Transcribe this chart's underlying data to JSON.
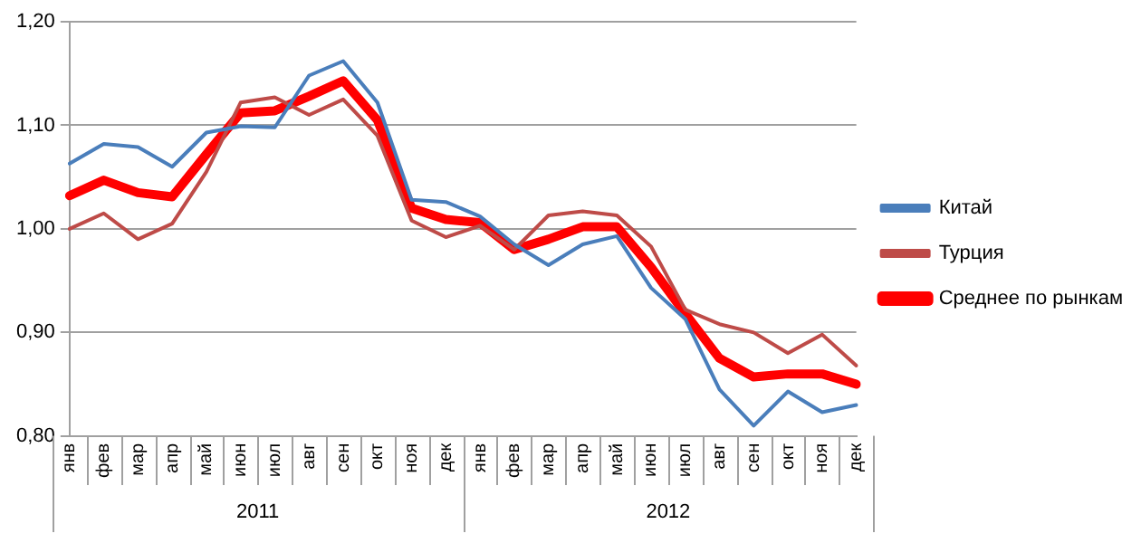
{
  "chart_data": {
    "type": "line",
    "categories": [
      "янв",
      "фев",
      "мар",
      "апр",
      "май",
      "июн",
      "июл",
      "авг",
      "сен",
      "окт",
      "ноя",
      "дек",
      "янв",
      "фев",
      "мар",
      "апр",
      "май",
      "июн",
      "июл",
      "авг",
      "сен",
      "окт",
      "ноя",
      "дек"
    ],
    "series": [
      {
        "name": "Китай",
        "color": "#4a7ebb",
        "values": [
          1.063,
          1.082,
          1.079,
          1.06,
          1.093,
          1.099,
          1.098,
          1.148,
          1.162,
          1.122,
          1.028,
          1.026,
          1.012,
          0.985,
          0.965,
          0.985,
          0.993,
          0.943,
          0.913,
          0.845,
          0.81,
          0.843,
          0.823,
          0.83
        ]
      },
      {
        "name": "Турция",
        "color": "#be4b48",
        "values": [
          1.0,
          1.015,
          0.99,
          1.005,
          1.055,
          1.122,
          1.127,
          1.11,
          1.125,
          1.09,
          1.008,
          0.992,
          1.003,
          0.98,
          1.013,
          1.017,
          1.013,
          0.983,
          0.922,
          0.908,
          0.9,
          0.88,
          0.898,
          0.868
        ]
      },
      {
        "name": "Среднее по рынкам",
        "color": "#ff0000",
        "values": [
          1.032,
          1.047,
          1.035,
          1.031,
          1.072,
          1.112,
          1.114,
          1.128,
          1.143,
          1.105,
          1.02,
          1.009,
          1.006,
          0.98,
          0.99,
          1.002,
          1.002,
          0.963,
          0.918,
          0.875,
          0.857,
          0.86,
          0.86,
          0.85
        ]
      }
    ],
    "ylim": [
      0.8,
      1.2
    ],
    "yticks": [
      {
        "value": 0.8,
        "label": "0,80"
      },
      {
        "value": 0.9,
        "label": "0,90"
      },
      {
        "value": 1.0,
        "label": "1,00"
      },
      {
        "value": 1.1,
        "label": "1,10"
      },
      {
        "value": 1.2,
        "label": "1,20"
      }
    ],
    "annotations": [
      "2011",
      "2012"
    ],
    "grid": "y",
    "legend": "right",
    "marker": "none",
    "line_style": "solid"
  }
}
